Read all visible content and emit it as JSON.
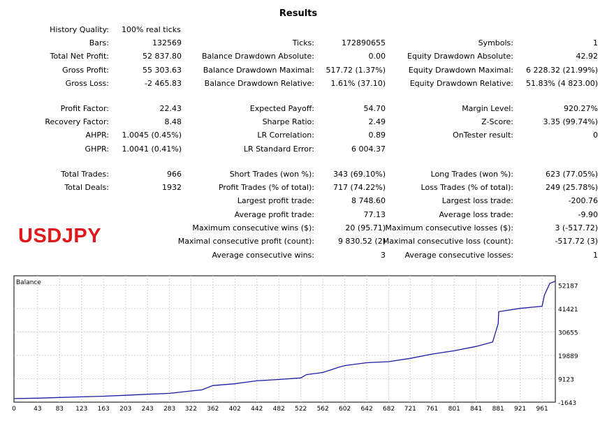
{
  "report": {
    "title": "Results",
    "symbol_label": "USDJPY",
    "history_quality": {
      "label": "History Quality:",
      "value": "100% real ticks"
    },
    "col1": [
      {
        "label": "Bars:",
        "value": "132569"
      },
      {
        "label": "Total Net Profit:",
        "value": "52 837.80"
      },
      {
        "label": "Gross Profit:",
        "value": "55 303.63"
      },
      {
        "label": "Gross Loss:",
        "value": "-2 465.83"
      },
      {
        "label": "Profit Factor:",
        "value": "22.43"
      },
      {
        "label": "Recovery Factor:",
        "value": "8.48"
      },
      {
        "label": "AHPR:",
        "value": "1.0045 (0.45%)"
      },
      {
        "label": "GHPR:",
        "value": "1.0041 (0.41%)"
      },
      {
        "label": "Total Trades:",
        "value": "966"
      },
      {
        "label": "Total Deals:",
        "value": "1932"
      }
    ],
    "col2": [
      {
        "label": "Ticks:",
        "value": "172890655"
      },
      {
        "label": "Balance Drawdown Absolute:",
        "value": "0.00"
      },
      {
        "label": "Balance Drawdown Maximal:",
        "value": "517.72 (1.37%)"
      },
      {
        "label": "Balance Drawdown Relative:",
        "value": "1.61% (37.10)"
      },
      {
        "label": "Expected Payoff:",
        "value": "54.70"
      },
      {
        "label": "Sharpe Ratio:",
        "value": "2.49"
      },
      {
        "label": "LR Correlation:",
        "value": "0.89"
      },
      {
        "label": "LR Standard Error:",
        "value": "6 004.37"
      },
      {
        "label": "Short Trades (won %):",
        "value": "343 (69.10%)"
      },
      {
        "label": "Profit Trades (% of total):",
        "value": "717 (74.22%)"
      },
      {
        "label": "Largest profit trade:",
        "value": "8 748.60"
      },
      {
        "label": "Average profit trade:",
        "value": "77.13"
      },
      {
        "label": "Maximum consecutive wins ($):",
        "value": "20 (95.71)"
      },
      {
        "label": "Maximal consecutive profit (count):",
        "value": "9 830.52 (2)"
      },
      {
        "label": "Average consecutive wins:",
        "value": "3"
      }
    ],
    "col3": [
      {
        "label": "Symbols:",
        "value": "1"
      },
      {
        "label": "Equity Drawdown Absolute:",
        "value": "42.92"
      },
      {
        "label": "Equity Drawdown Maximal:",
        "value": "6 228.32 (21.99%)"
      },
      {
        "label": "Equity Drawdown Relative:",
        "value": "51.83% (4 823.00)"
      },
      {
        "label": "Margin Level:",
        "value": "920.27%"
      },
      {
        "label": "Z-Score:",
        "value": "3.35 (99.74%)"
      },
      {
        "label": "OnTester result:",
        "value": "0"
      },
      {
        "label": "Long Trades (won %):",
        "value": "623 (77.05%)"
      },
      {
        "label": "Loss Trades (% of total):",
        "value": "249 (25.78%)"
      },
      {
        "label": "Largest loss trade:",
        "value": "-200.76"
      },
      {
        "label": "Average loss trade:",
        "value": "-9.90"
      },
      {
        "label": "Maximum consecutive losses ($):",
        "value": "3 (-517.72)"
      },
      {
        "label": "Maximal consecutive loss (count):",
        "value": "-517.72 (3)"
      },
      {
        "label": "Average consecutive losses:",
        "value": "1"
      }
    ]
  },
  "colors": {
    "symbol": "#e0181c",
    "balance_line": "#1c1ca8",
    "grid": "#d0d0d0"
  },
  "chart_data": {
    "type": "line",
    "title": "Balance",
    "xlabel": "",
    "ylabel": "",
    "x_ticks": [
      0,
      43,
      83,
      123,
      163,
      203,
      243,
      283,
      322,
      362,
      402,
      442,
      482,
      522,
      562,
      602,
      642,
      682,
      721,
      761,
      801,
      841,
      881,
      921,
      961
    ],
    "y_ticks": [
      -1643,
      9123,
      19889,
      30655,
      41421,
      52187
    ],
    "xlim": [
      0,
      985
    ],
    "ylim": [
      -1643,
      56500
    ],
    "grid": true,
    "series": [
      {
        "name": "",
        "x": [
          0,
          43,
          83,
          123,
          163,
          203,
          243,
          283,
          322,
          342,
          362,
          402,
          412,
          442,
          482,
          522,
          532,
          562,
          592,
          602,
          642,
          682,
          721,
          761,
          801,
          841,
          871,
          881,
          882,
          921,
          961,
          965,
          975,
          985
        ],
        "y": [
          0,
          200,
          500,
          800,
          1100,
          1500,
          2000,
          2400,
          3500,
          4000,
          6000,
          6800,
          7200,
          8200,
          8800,
          9500,
          11000,
          12000,
          14500,
          15200,
          16500,
          17000,
          18500,
          20500,
          22000,
          24000,
          26000,
          34500,
          40000,
          41500,
          42500,
          47500,
          53000,
          54000
        ]
      }
    ]
  }
}
